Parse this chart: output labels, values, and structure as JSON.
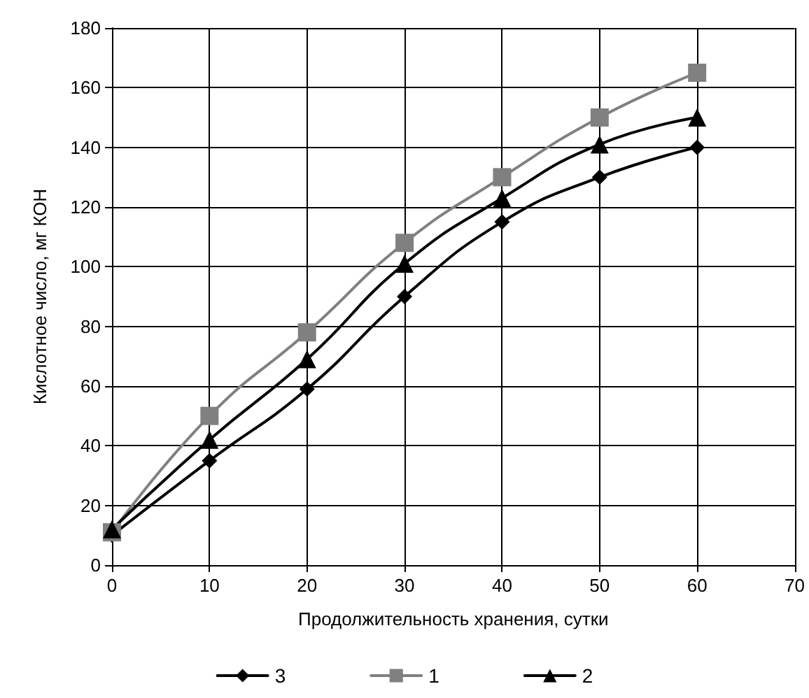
{
  "chart_data": {
    "type": "line",
    "xlabel": "Продолжительность хранения, сутки",
    "ylabel": "Кислотное число, мг КОН",
    "x": [
      0,
      10,
      20,
      30,
      40,
      50,
      60
    ],
    "series": [
      {
        "name": "3",
        "color": "#000000",
        "marker": "diamond",
        "values": [
          10,
          35,
          59,
          90,
          115,
          130,
          140
        ]
      },
      {
        "name": "1",
        "color": "#808080",
        "marker": "square",
        "values": [
          11,
          50,
          78,
          108,
          130,
          150,
          165
        ]
      },
      {
        "name": "2",
        "color": "#000000",
        "marker": "triangle",
        "values": [
          12,
          42,
          69,
          101,
          123,
          141,
          150
        ]
      }
    ],
    "xlim": [
      0,
      70
    ],
    "xticks": [
      0,
      10,
      20,
      30,
      40,
      50,
      60,
      70
    ],
    "ylim": [
      0,
      180
    ],
    "yticks": [
      0,
      20,
      40,
      60,
      80,
      100,
      120,
      140,
      160,
      180
    ],
    "grid": true,
    "legend": "bottom"
  }
}
